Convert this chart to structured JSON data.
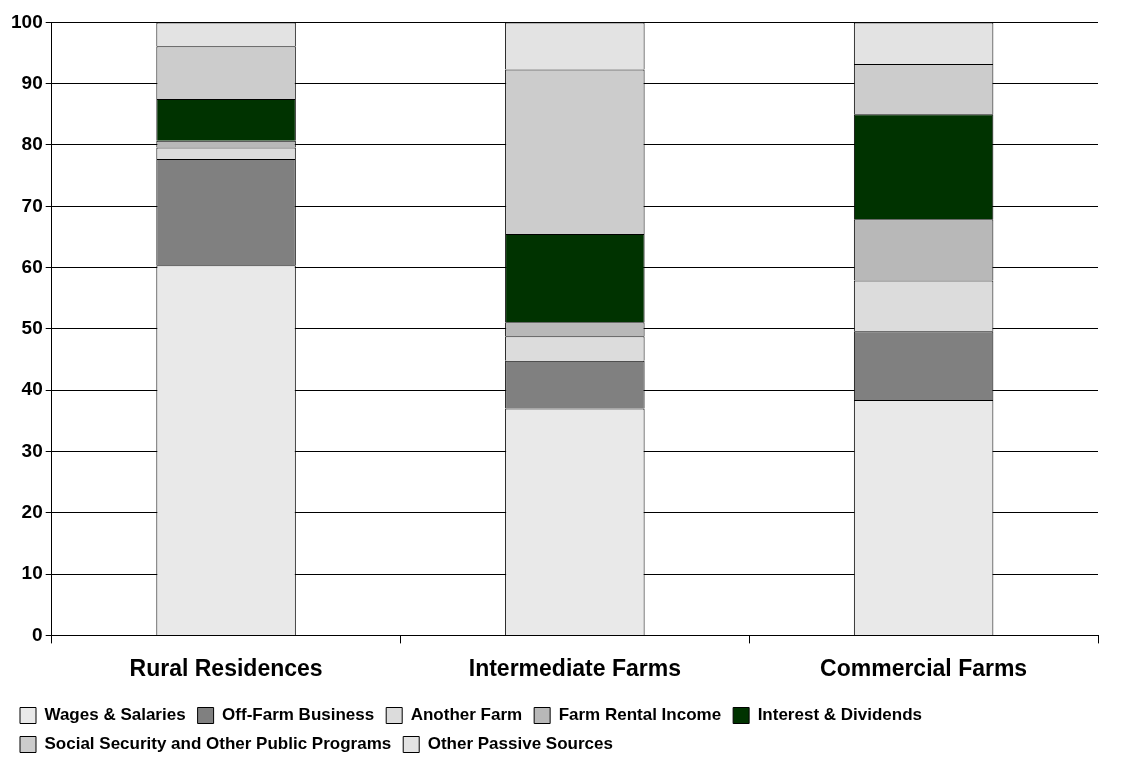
{
  "chart_data": {
    "type": "bar",
    "stacked": true,
    "categories": [
      "Rural Residences",
      "Intermediate Farms",
      "Commercial Farms"
    ],
    "series": [
      {
        "name": "Wages & Salaries",
        "color": "#e9e9e9",
        "values": [
          60.4,
          37.0,
          38.4
        ]
      },
      {
        "name": "Off-Farm Business",
        "color": "#808080",
        "values": [
          17.3,
          7.8,
          11.2
        ]
      },
      {
        "name": "Another Farm",
        "color": "#dcdcdc",
        "values": [
          1.9,
          4.0,
          8.3
        ]
      },
      {
        "name": "Farm Rental Income",
        "color": "#b8b8b8",
        "values": [
          1.1,
          2.3,
          10.0
        ]
      },
      {
        "name": "Interest & Dividends",
        "color": "#003300",
        "values": [
          6.8,
          14.4,
          17.1
        ]
      },
      {
        "name": "Social Security and Other Public Programs",
        "color": "#cccccc",
        "values": [
          8.6,
          26.8,
          8.2
        ]
      },
      {
        "name": "Other Passive Sources",
        "color": "#e3e3e3",
        "values": [
          3.9,
          7.7,
          6.8
        ]
      }
    ],
    "ylim": [
      0,
      100
    ],
    "yticks": [
      0,
      10,
      20,
      30,
      40,
      50,
      60,
      70,
      80,
      90,
      100
    ],
    "grid": "y",
    "legend": "bottom"
  }
}
